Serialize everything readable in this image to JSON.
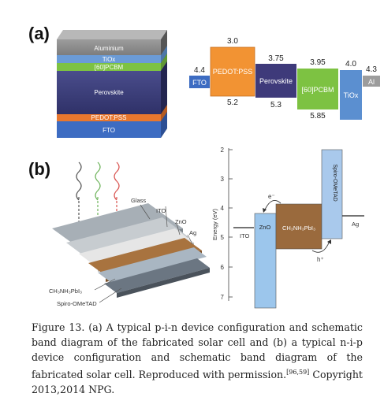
{
  "panel_a": {
    "label": "(a)",
    "stack_layers": [
      "Aluminium",
      "TiOx",
      "[60]PCBM",
      "Perovskite",
      "PEDOT:PSS",
      "FTO"
    ],
    "band": {
      "fto": {
        "label": "FTO",
        "value": "4.4"
      },
      "pedot": {
        "label": "PEDOT:PSS",
        "top": "3.0",
        "bottom": "5.2"
      },
      "perovskite": {
        "label": "Perovskite",
        "top": "3.75",
        "bottom": "5.3"
      },
      "pcbm": {
        "label": "[60]PCBM",
        "top": "3.95",
        "bottom": "5.85"
      },
      "tiox": {
        "label": "TiOx",
        "top": "4.0"
      },
      "al": {
        "label": "Al",
        "value": "4.3"
      }
    }
  },
  "panel_b": {
    "label": "(b)",
    "device_labels": {
      "glass": "Glass",
      "ito": "ITO",
      "zno": "ZnO",
      "ag": "Ag",
      "ch3": "CH₃NH₃PbI₃",
      "spiro": "Spiro-OMeTAD"
    },
    "band": {
      "yaxis_label": "Energy (eV)",
      "ticks": [
        "2",
        "3",
        "4",
        "5",
        "6",
        "7"
      ],
      "ito": "ITO",
      "zno": "ZnO",
      "perov": "CH₃NH₃PbI₃",
      "spiro": "Spiro-OMeTAD",
      "ag": "Ag",
      "electron": "e⁻",
      "hole": "h⁺"
    }
  },
  "caption": {
    "fig_label": "Figure 13.",
    "text": " (a) A typical p-i-n device configuration and schematic band diagram of the fabricated solar cell and (b) a typical n-i-p device configuration and schematic band diagram of the fabricated solar cell. Reproduced with permission.",
    "refs": "[96,59]",
    "tail": " Copyright 2013,2014 NPG."
  }
}
